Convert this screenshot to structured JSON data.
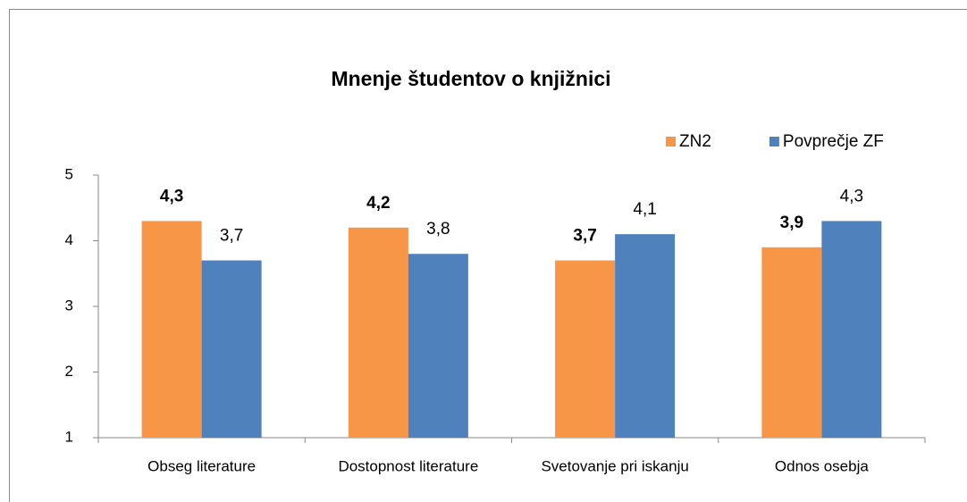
{
  "chart_data": {
    "type": "bar",
    "title": "Mnenje študentov o knjižnici",
    "categories": [
      "Obseg literature",
      "Dostopnost literature",
      "Svetovanje pri iskanju",
      "Odnos osebja"
    ],
    "series": [
      {
        "name": "ZN2",
        "color": "#f79646",
        "values": [
          4.3,
          4.2,
          3.7,
          3.9
        ],
        "value_labels": [
          "4,3",
          "4,2",
          "3,7",
          "3,9"
        ]
      },
      {
        "name": "Povprečje ZF",
        "color": "#4f81bd",
        "values": [
          3.7,
          3.8,
          4.1,
          4.3
        ],
        "value_labels": [
          "3,7",
          "3,8",
          "4,1",
          "4,3"
        ]
      }
    ],
    "ylim": [
      1,
      5
    ],
    "yticks": [
      1,
      2,
      3,
      4,
      5
    ],
    "legend": "top-right"
  }
}
